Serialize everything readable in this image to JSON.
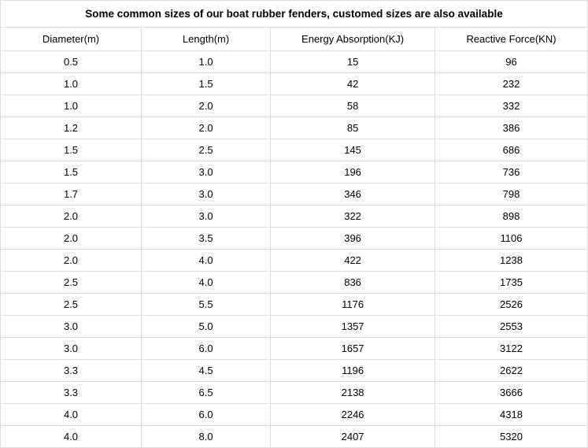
{
  "table": {
    "title": "Some common sizes of our boat rubber fenders, customed sizes are also available",
    "columns": [
      "Diameter(m)",
      "Length(m)",
      "Energy Absorption(KJ)",
      "Reactive Force(KN)"
    ],
    "column_widths_pct": [
      24,
      22,
      28,
      26
    ],
    "rows": [
      [
        "0.5",
        "1.0",
        "15",
        "96"
      ],
      [
        "1.0",
        "1.5",
        "42",
        "232"
      ],
      [
        "1.0",
        "2.0",
        "58",
        "332"
      ],
      [
        "1.2",
        "2.0",
        "85",
        "386"
      ],
      [
        "1.5",
        "2.5",
        "145",
        "686"
      ],
      [
        "1.5",
        "3.0",
        "196",
        "736"
      ],
      [
        "1.7",
        "3.0",
        "346",
        "798"
      ],
      [
        "2.0",
        "3.0",
        "322",
        "898"
      ],
      [
        "2.0",
        "3.5",
        "396",
        "1106"
      ],
      [
        "2.0",
        "4.0",
        "422",
        "1238"
      ],
      [
        "2.5",
        "4.0",
        "836",
        "1735"
      ],
      [
        "2.5",
        "5.5",
        "1176",
        "2526"
      ],
      [
        "3.0",
        "5.0",
        "1357",
        "2553"
      ],
      [
        "3.0",
        "6.0",
        "1657",
        "3122"
      ],
      [
        "3.3",
        "4.5",
        "1196",
        "2622"
      ],
      [
        "3.3",
        "6.5",
        "2138",
        "3666"
      ],
      [
        "4.0",
        "6.0",
        "2246",
        "4318"
      ],
      [
        "4.0",
        "8.0",
        "2407",
        "5320"
      ]
    ],
    "border_color": "#dddddd",
    "text_color": "#000000",
    "background_color": "#ffffff",
    "title_fontsize": 13.5,
    "header_fontsize": 13,
    "cell_fontsize": 13,
    "title_fontweight": "bold",
    "header_fontweight": "normal"
  }
}
